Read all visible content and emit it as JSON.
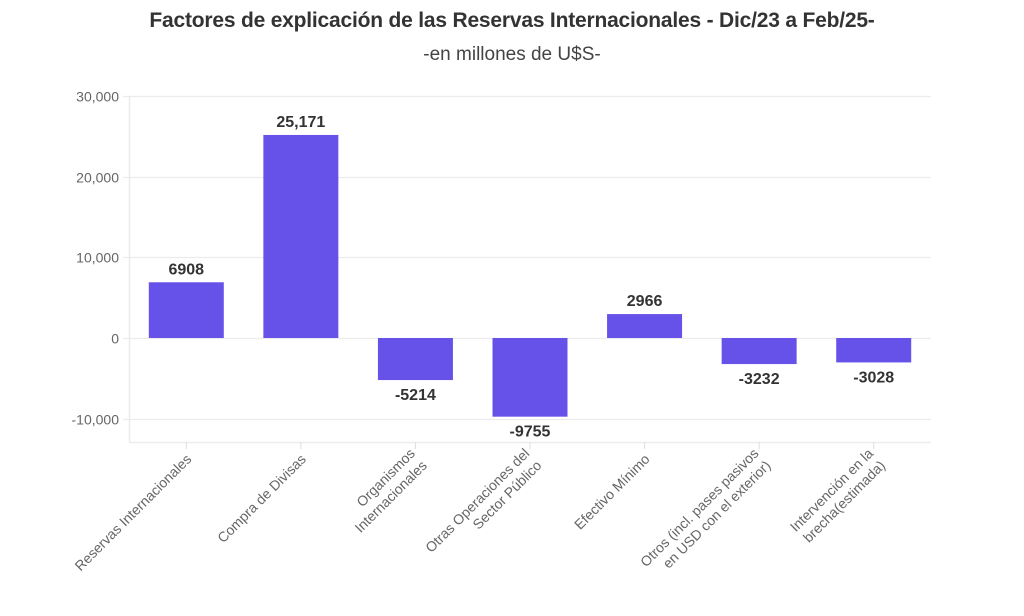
{
  "chart_data": {
    "type": "bar",
    "title": "Factores de explicación de las Reservas Internacionales - Dic/23 a Feb/25-",
    "subtitle": "-en millones de U$S-",
    "xlabel": "",
    "ylabel": "",
    "ylim": [
      -13000,
      30000
    ],
    "yticks": [
      30000,
      20000,
      10000,
      0,
      -10000
    ],
    "ytick_labels": [
      "30,000",
      "20,000",
      "10,000",
      "0",
      "-10,000"
    ],
    "grid": true,
    "legend": "none",
    "bar_color": "#6652E8",
    "categories": [
      [
        "Reservas Internacionales"
      ],
      [
        "Compra de Divisas"
      ],
      [
        "Organismos",
        "Internacionales"
      ],
      [
        "Otras Operaciones del",
        "Sector Público"
      ],
      [
        "Efectivo Mínimo"
      ],
      [
        "Otros (incl. pases pasivos",
        "en USD con el exterior)"
      ],
      [
        "Intervención en la",
        "brecha(estimada)"
      ]
    ],
    "values": [
      6908,
      25171,
      -5214,
      -9755,
      2966,
      -3232,
      -3028
    ],
    "data_labels": [
      "6908",
      "25,171",
      "-5214",
      "-9755",
      "2966",
      "-3232",
      "-3028"
    ]
  }
}
